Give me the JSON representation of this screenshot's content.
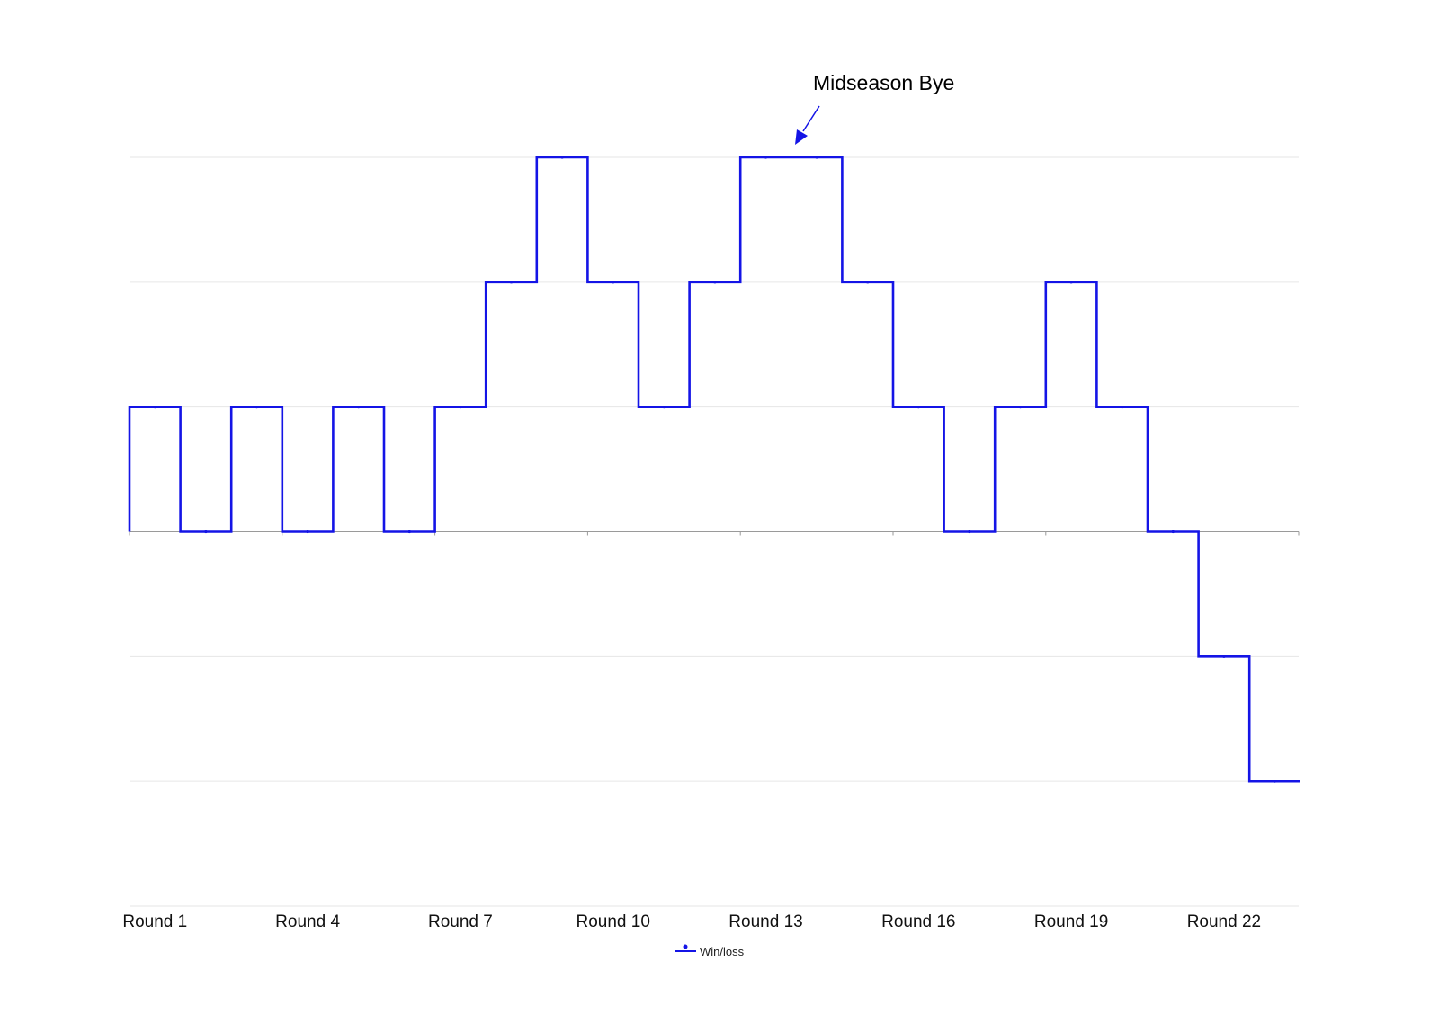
{
  "chart_data": {
    "type": "line",
    "step": true,
    "categories": [
      "Round 1",
      "Round 2",
      "Round 3",
      "Round 4",
      "Round 5",
      "Round 6",
      "Round 7",
      "Round 8",
      "Round 9",
      "Round 10",
      "Round 11",
      "Round 12",
      "Round 13",
      "Round 14",
      "Round 15",
      "Round 16",
      "Round 17",
      "Round 18",
      "Round 19",
      "Round 20",
      "Round 21",
      "Round 22",
      "Round 23"
    ],
    "x_tick_labels": [
      "Round 1",
      "Round 4",
      "Round 7",
      "Round 10",
      "Round 13",
      "Round 16",
      "Round 19",
      "Round 22"
    ],
    "series": [
      {
        "name": "Win/loss",
        "color": "#1414e6",
        "values": [
          1,
          0,
          1,
          0,
          1,
          0,
          1,
          2,
          3,
          2,
          1,
          2,
          3,
          3,
          2,
          1,
          0,
          1,
          2,
          1,
          0,
          -1,
          -2
        ]
      }
    ],
    "ylim": [
      -3,
      3
    ],
    "grid": true,
    "legend": "bottom-center",
    "annotation": {
      "text": "Midseason Bye",
      "round": "Round 13"
    },
    "title": "",
    "xlabel": "",
    "ylabel": ""
  }
}
